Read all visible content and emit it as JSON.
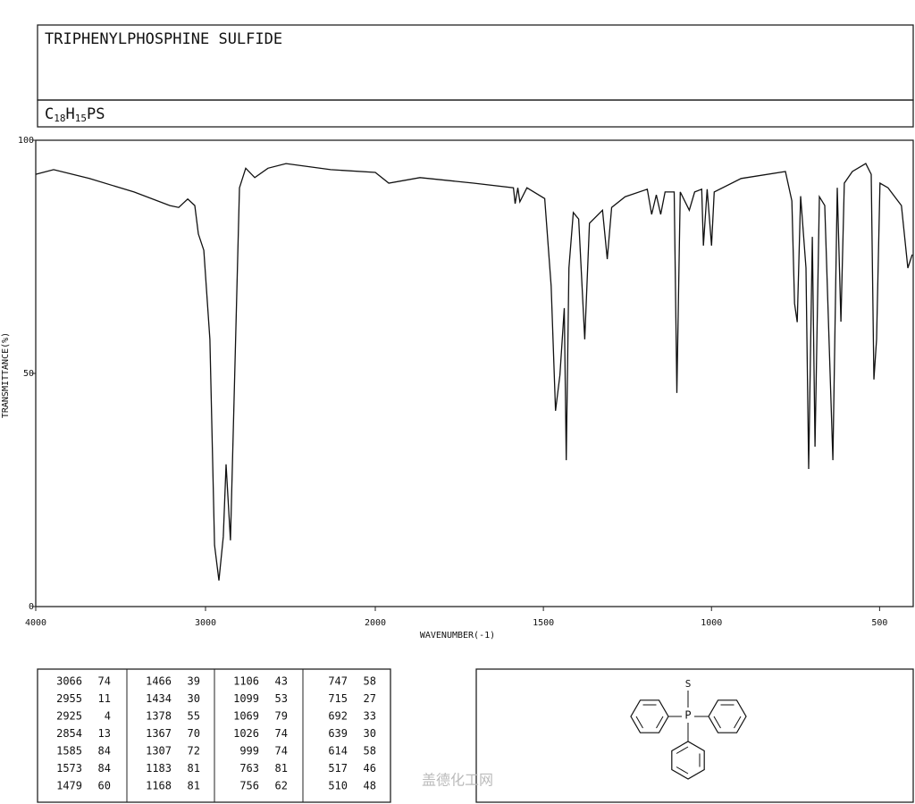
{
  "title": "TRIPHENYLPHOSPHINE SULFIDE",
  "formula": [
    "C",
    "18",
    "H",
    "15",
    "PS"
  ],
  "chart_data": {
    "type": "line",
    "color": "#111111",
    "ylabel": "TRANSMITTANCE(%)",
    "xlabel": "WAVENUMBER(-1)",
    "xlim": [
      4000,
      400
    ],
    "x_scale_break": 2000,
    "xticks": [
      4000,
      3000,
      2000,
      1500,
      1000,
      500
    ],
    "ylim": [
      0,
      100
    ],
    "yticks": [
      0,
      50,
      100
    ],
    "x": [
      4000,
      3895,
      3684,
      3421,
      3210,
      3158,
      3105,
      3063,
      3042,
      3010,
      2974,
      2947,
      2921,
      2895,
      2879,
      2853,
      2832,
      2800,
      2763,
      2710,
      2632,
      2526,
      2263,
      2000,
      1960,
      1867,
      1708,
      1589,
      1584,
      1576,
      1570,
      1549,
      1496,
      1477,
      1464,
      1451,
      1438,
      1432,
      1424,
      1411,
      1395,
      1377,
      1363,
      1324,
      1310,
      1297,
      1257,
      1191,
      1178,
      1164,
      1151,
      1138,
      1111,
      1103,
      1093,
      1066,
      1050,
      1029,
      1024,
      1013,
      1000,
      992,
      912,
      780,
      761,
      753,
      745,
      735,
      719,
      711,
      700,
      692,
      679,
      663,
      639,
      626,
      615,
      605,
      581,
      541,
      525,
      517,
      509,
      499,
      475,
      435,
      416,
      403
    ],
    "values": [
      92.7,
      93.7,
      91.8,
      88.9,
      86,
      85.6,
      87.4,
      86,
      79.9,
      76.4,
      57.3,
      13.2,
      5.6,
      15,
      30.5,
      14.2,
      43.9,
      89.8,
      94,
      92,
      94,
      95,
      93.7,
      93.1,
      90.8,
      92,
      90.8,
      89.8,
      86.4,
      89.8,
      86.8,
      89.8,
      87.5,
      68.8,
      42,
      49.6,
      64,
      31.4,
      72.6,
      84.5,
      83.1,
      57.3,
      82.2,
      85,
      74.5,
      85.6,
      87.9,
      89.5,
      84.1,
      88.3,
      84.1,
      88.9,
      88.9,
      45.8,
      88.9,
      85,
      88.9,
      89.5,
      77.4,
      89.5,
      77.4,
      88.9,
      91.8,
      93.3,
      87,
      65,
      61,
      88,
      72.6,
      29.5,
      79.3,
      34.3,
      87.9,
      86,
      31.4,
      89.8,
      61.1,
      90.8,
      93.3,
      95,
      92.7,
      48.7,
      57.3,
      90.8,
      89.8,
      86,
      72.6,
      75.5
    ]
  },
  "peak_table": [
    {
      "wavenumber": 3066,
      "transmittance": 74
    },
    {
      "wavenumber": 2955,
      "transmittance": 11
    },
    {
      "wavenumber": 2925,
      "transmittance": 4
    },
    {
      "wavenumber": 2854,
      "transmittance": 13
    },
    {
      "wavenumber": 1585,
      "transmittance": 84
    },
    {
      "wavenumber": 1573,
      "transmittance": 84
    },
    {
      "wavenumber": 1479,
      "transmittance": 60
    },
    {
      "wavenumber": 1466,
      "transmittance": 39
    },
    {
      "wavenumber": 1434,
      "transmittance": 30
    },
    {
      "wavenumber": 1378,
      "transmittance": 55
    },
    {
      "wavenumber": 1367,
      "transmittance": 70
    },
    {
      "wavenumber": 1307,
      "transmittance": 72
    },
    {
      "wavenumber": 1183,
      "transmittance": 81
    },
    {
      "wavenumber": 1168,
      "transmittance": 81
    },
    {
      "wavenumber": 1106,
      "transmittance": 43
    },
    {
      "wavenumber": 1099,
      "transmittance": 53
    },
    {
      "wavenumber": 1069,
      "transmittance": 79
    },
    {
      "wavenumber": 1026,
      "transmittance": 74
    },
    {
      "wavenumber": 999,
      "transmittance": 74
    },
    {
      "wavenumber": 763,
      "transmittance": 81
    },
    {
      "wavenumber": 756,
      "transmittance": 62
    },
    {
      "wavenumber": 747,
      "transmittance": 58
    },
    {
      "wavenumber": 715,
      "transmittance": 27
    },
    {
      "wavenumber": 692,
      "transmittance": 33
    },
    {
      "wavenumber": 639,
      "transmittance": 30
    },
    {
      "wavenumber": 614,
      "transmittance": 58
    },
    {
      "wavenumber": 517,
      "transmittance": 46
    },
    {
      "wavenumber": 510,
      "transmittance": 48
    }
  ],
  "structure": {
    "atoms": [
      "S",
      "P"
    ]
  },
  "watermark": "盖德化工网"
}
